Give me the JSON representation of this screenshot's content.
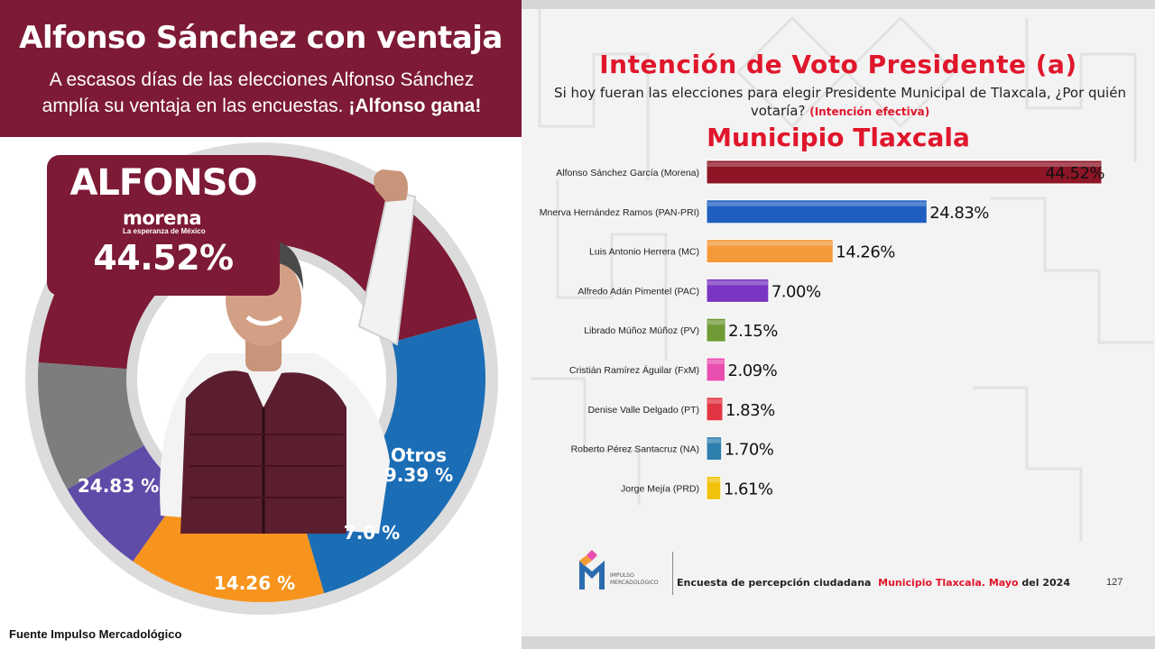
{
  "left": {
    "headline": "Alfonso Sánchez con ventaja",
    "subhead_line1": "A escasos días de las elecciones Alfonso Sánchez",
    "subhead_line2_prefix": "amplía su ventaja en las encuestas. ",
    "subhead_line2_bold": "¡Alfonso gana!",
    "candidate_box": {
      "name": "ALFONSO",
      "party": "morena",
      "party_tagline": "La esperanza de México",
      "percent": "44.52%"
    },
    "slice_labels": {
      "pan_pri": "24.83 %",
      "mc": "14.26 %",
      "pac": "7.0 %",
      "otros_name": "Otros",
      "otros_value": "9.39 %"
    },
    "source": "Fuente Impulso Mercadológico"
  },
  "right": {
    "title": "Intención de Voto Presidente (a)",
    "question": "Si hoy fueran las elecciones para elegir Presidente Municipal de Tlaxcala, ¿Por quién votaría?",
    "qualifier": "(Intención efectiva)",
    "subtitle": "Municipio Tlaxcala",
    "footer_logo_line1": "IMPULSO",
    "footer_logo_line2": "MERCADOLÓGICO",
    "footer_survey_prefix": "Encuesta de percepción ciudadana",
    "footer_survey_place": "Municipio Tlaxcala.",
    "footer_survey_month": "Mayo",
    "footer_survey_year": "del 2024",
    "page_number": "127"
  },
  "chart_data": [
    {
      "type": "pie",
      "categories": [
        "Morena",
        "PAN-PRI",
        "MC",
        "PAC",
        "Otros"
      ],
      "values": [
        44.52,
        24.83,
        14.26,
        7.0,
        9.39
      ],
      "colors": [
        "#7d1a36",
        "#1b6db5",
        "#f7941d",
        "#5f4ba8",
        "#7d7d7d"
      ],
      "style": "donut"
    },
    {
      "type": "bar",
      "orientation": "horizontal",
      "title": "Intención de Voto Presidente (a)",
      "subtitle": "Municipio Tlaxcala",
      "categories": [
        "Alfonso Sánchez García (Morena)",
        "Mnerva Hernández Ramos (PAN-PRI)",
        "Luis Antonio Herrera (MC)",
        "Alfredo Adán Pimentel (PAC)",
        "Librado Múñoz Múñoz (PV)",
        "Cristián Ramírez Águilar (FxM)",
        "Denise Valle Delgado (PT)",
        "Roberto Pérez Santacruz (NA)",
        "Jorge Mejía (PRD)"
      ],
      "values": [
        44.52,
        24.83,
        14.26,
        7.0,
        2.15,
        2.09,
        1.83,
        1.7,
        1.61
      ],
      "value_labels": [
        "44.52%",
        "24.83%",
        "14.26%",
        "7.00%",
        "2.15%",
        "2.09%",
        "1.83%",
        "1.70%",
        "1.61%"
      ],
      "colors": [
        "#8e1525",
        "#1f5fbf",
        "#f59a3a",
        "#7a35c2",
        "#6f9a36",
        "#e84fb0",
        "#e23543",
        "#2f7fae",
        "#f2c20c"
      ],
      "xlim": [
        0,
        44.52
      ]
    }
  ]
}
